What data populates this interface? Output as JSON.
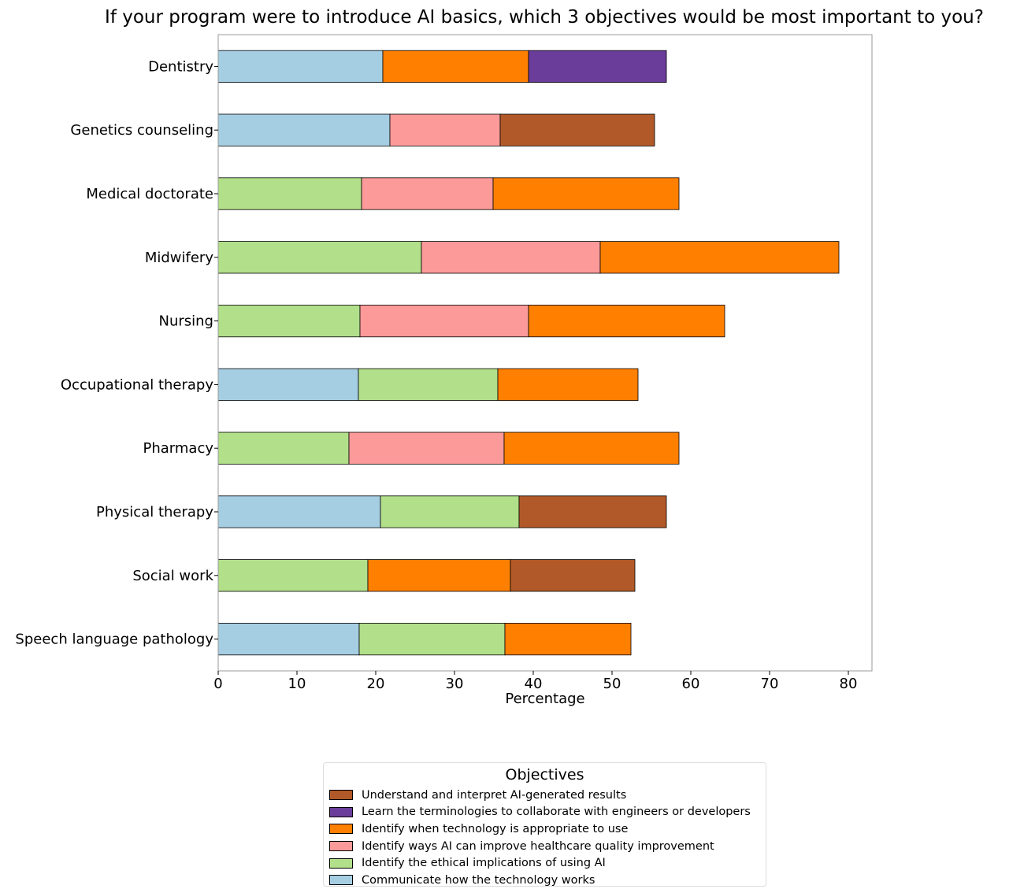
{
  "chart_data": {
    "type": "bar",
    "orientation": "horizontal",
    "stacked": true,
    "title": "If your program were to introduce AI basics, which 3 objectives would be most important to you?",
    "xlabel": "Percentage",
    "ylabel": "",
    "xlim": [
      0,
      83
    ],
    "xticks": [
      "0",
      "10",
      "20",
      "30",
      "40",
      "50",
      "60",
      "70",
      "80"
    ],
    "grid": false,
    "legend_position": "bottom-center",
    "legend_title": "Objectives",
    "categories": [
      "Dentistry",
      "Genetics counseling",
      "Medical doctorate",
      "Midwifery",
      "Nursing",
      "Occupational therapy",
      "Pharmacy",
      "Physical therapy",
      "Social work",
      "Speech language pathology"
    ],
    "series": [
      {
        "name": "Communicate how the technology works",
        "color": "#a6cee3",
        "values": [
          20.9,
          21.8,
          null,
          null,
          null,
          17.8,
          null,
          20.6,
          null,
          17.9
        ]
      },
      {
        "name": "Identify the ethical implications of using AI",
        "color": "#b2df8a",
        "values": [
          null,
          null,
          18.2,
          25.8,
          18.0,
          17.7,
          16.6,
          17.6,
          19.0,
          18.5
        ]
      },
      {
        "name": "Identify ways AI can improve healthcare quality improvement",
        "color": "#fb9a99",
        "values": [
          null,
          14.0,
          16.7,
          22.7,
          21.4,
          null,
          19.7,
          null,
          null,
          null
        ]
      },
      {
        "name": "Identify when technology is appropriate to use",
        "color": "#ff7f00",
        "values": [
          18.5,
          null,
          23.6,
          30.3,
          24.9,
          17.8,
          22.2,
          null,
          18.1,
          16.0
        ]
      },
      {
        "name": "Learn the terminologies to collaborate with engineers or developers",
        "color": "#6a3d9a",
        "values": [
          17.5,
          null,
          null,
          null,
          null,
          null,
          null,
          null,
          null,
          null
        ]
      },
      {
        "name": "Understand and interpret AI-generated results",
        "color": "#b15928",
        "values": [
          null,
          19.6,
          null,
          null,
          null,
          null,
          null,
          18.7,
          15.8,
          null
        ]
      }
    ]
  }
}
